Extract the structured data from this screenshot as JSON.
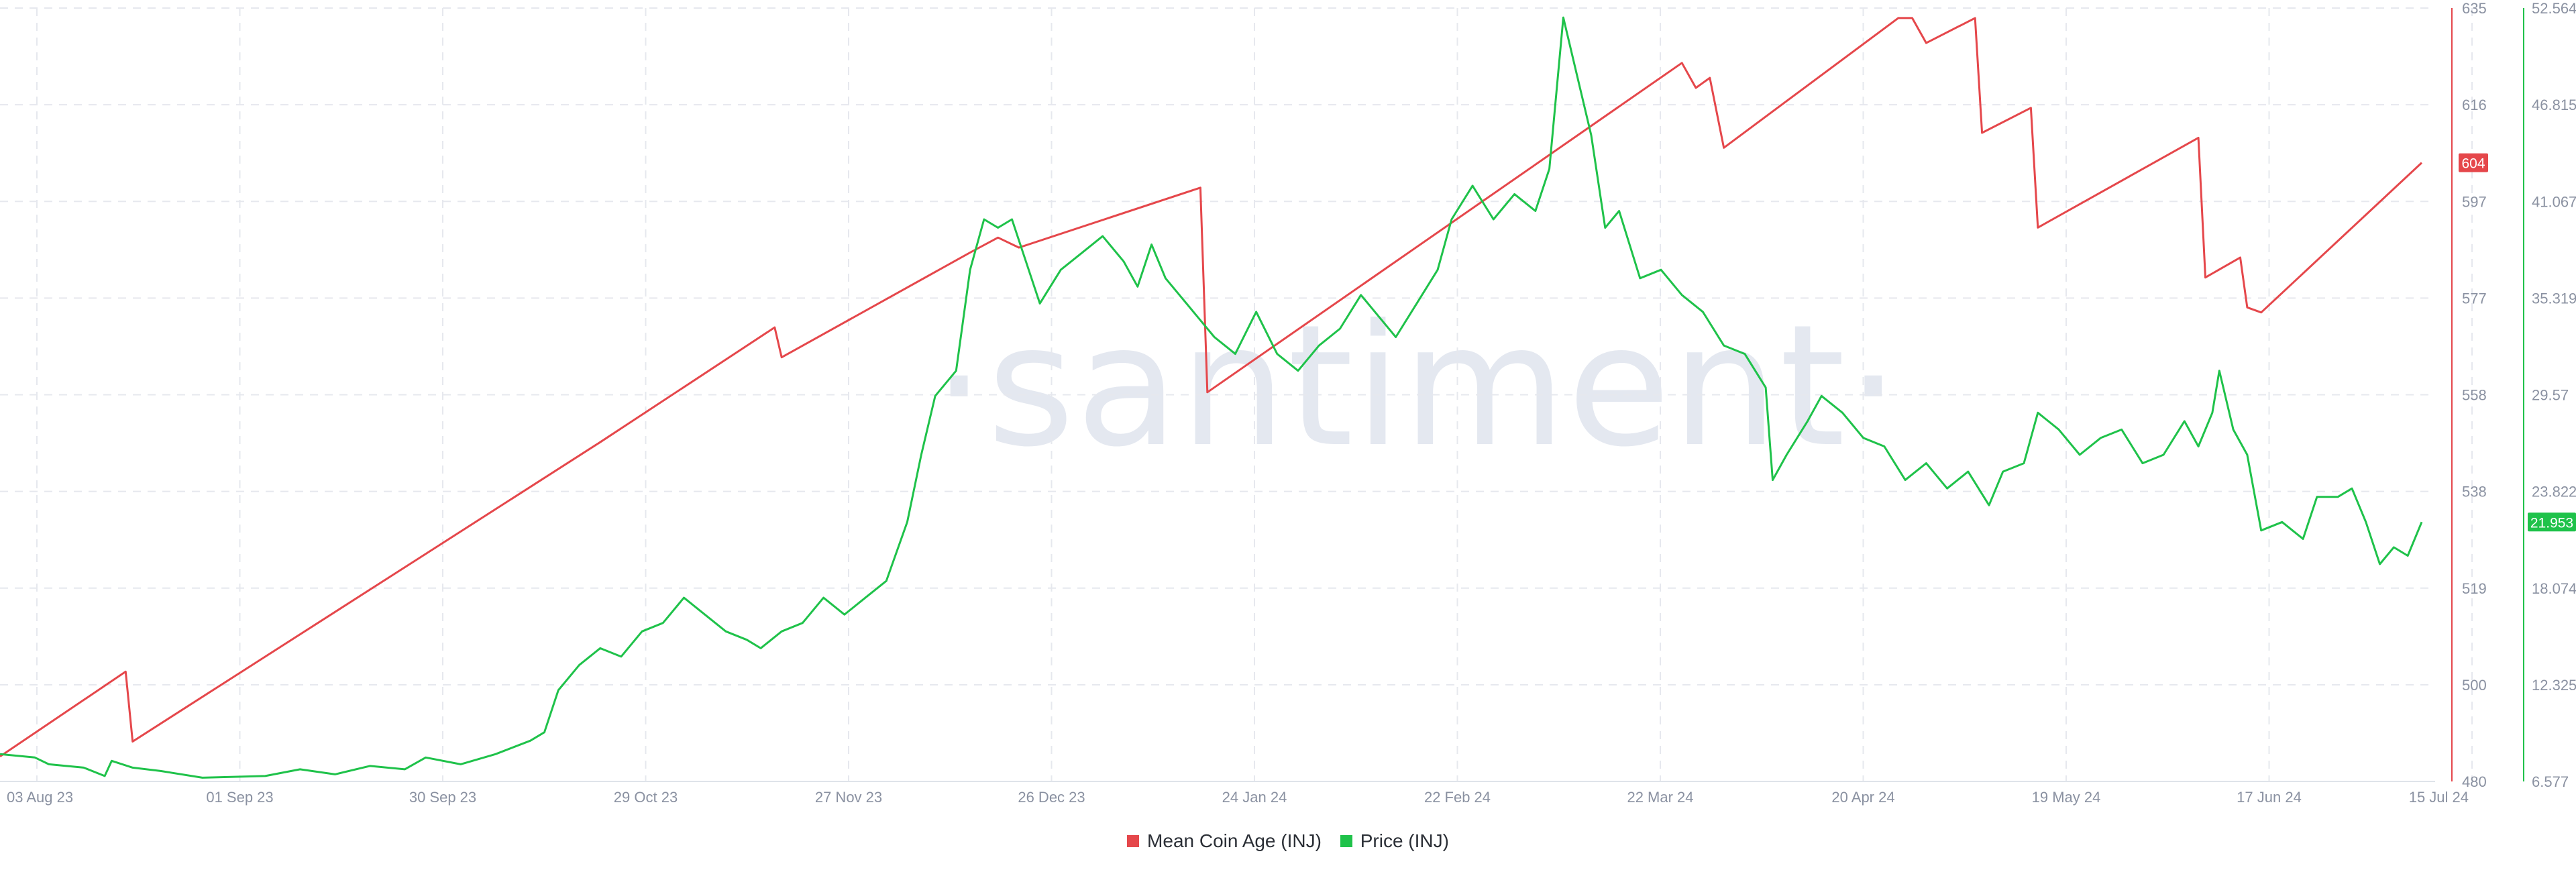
{
  "watermark": "·santiment·",
  "colors": {
    "coin_age": "#e5474b",
    "price": "#1fc24a",
    "grid": "#e6e8ee",
    "axis_text": "#8a91a1"
  },
  "current_labels": {
    "coin_age": "604",
    "price": "21.953"
  },
  "legend": {
    "coin_age": "Mean Coin Age (INJ)",
    "price": "Price (INJ)"
  },
  "chart_data": {
    "type": "line",
    "title": "",
    "x_ticks": [
      "03 Aug 23",
      "01 Sep 23",
      "30 Sep 23",
      "29 Oct 23",
      "27 Nov 23",
      "26 Dec 23",
      "24 Jan 24",
      "22 Feb 24",
      "22 Mar 24",
      "20 Apr 24",
      "19 May 24",
      "17 Jun 24",
      "15 Jul 24"
    ],
    "x_range": [
      "2023-08-03",
      "2024-07-15"
    ],
    "y_left": {
      "label": "Mean Coin Age (INJ)",
      "ticks": [
        "635",
        "616",
        "597",
        "577",
        "558",
        "538",
        "519",
        "500",
        "480"
      ],
      "range": [
        480,
        635
      ]
    },
    "y_right": {
      "label": "Price (INJ)",
      "ticks": [
        "52.564",
        "46.815",
        "41.067",
        "35.319",
        "29.57",
        "23.822",
        "18.074",
        "12.325",
        "6.577"
      ],
      "range": [
        6.577,
        52.564
      ]
    },
    "series": [
      {
        "name": "Mean Coin Age (INJ)",
        "axis": "left",
        "points": [
          [
            "2023-08-03",
            485
          ],
          [
            "2023-08-21",
            502
          ],
          [
            "2023-08-22",
            488
          ],
          [
            "2023-10-28",
            548
          ],
          [
            "2023-11-22",
            571
          ],
          [
            "2023-11-23",
            565
          ],
          [
            "2023-12-20",
            586
          ],
          [
            "2023-12-24",
            589
          ],
          [
            "2023-12-27",
            587
          ],
          [
            "2024-01-22",
            599
          ],
          [
            "2024-01-23",
            558
          ],
          [
            "2024-03-31",
            624
          ],
          [
            "2024-04-02",
            619
          ],
          [
            "2024-04-04",
            621
          ],
          [
            "2024-04-06",
            607
          ],
          [
            "2024-05-01",
            633
          ],
          [
            "2024-05-03",
            633
          ],
          [
            "2024-05-05",
            628
          ],
          [
            "2024-05-12",
            633
          ],
          [
            "2024-05-13",
            610
          ],
          [
            "2024-05-20",
            615
          ],
          [
            "2024-05-21",
            591
          ],
          [
            "2024-06-13",
            609
          ],
          [
            "2024-06-14",
            581
          ],
          [
            "2024-06-19",
            585
          ],
          [
            "2024-06-20",
            575
          ],
          [
            "2024-06-22",
            574
          ],
          [
            "2024-07-15",
            604
          ]
        ]
      },
      {
        "name": "Price (INJ)",
        "axis": "right",
        "points": [
          [
            "2023-08-03",
            8.2
          ],
          [
            "2023-08-08",
            8.0
          ],
          [
            "2023-08-10",
            7.6
          ],
          [
            "2023-08-15",
            7.4
          ],
          [
            "2023-08-18",
            6.9
          ],
          [
            "2023-08-19",
            7.8
          ],
          [
            "2023-08-22",
            7.4
          ],
          [
            "2023-08-26",
            7.2
          ],
          [
            "2023-09-01",
            6.8
          ],
          [
            "2023-09-10",
            6.9
          ],
          [
            "2023-09-15",
            7.3
          ],
          [
            "2023-09-20",
            7.0
          ],
          [
            "2023-09-25",
            7.5
          ],
          [
            "2023-09-30",
            7.3
          ],
          [
            "2023-10-03",
            8.0
          ],
          [
            "2023-10-08",
            7.6
          ],
          [
            "2023-10-13",
            8.2
          ],
          [
            "2023-10-18",
            9.0
          ],
          [
            "2023-10-20",
            9.5
          ],
          [
            "2023-10-22",
            12.0
          ],
          [
            "2023-10-25",
            13.5
          ],
          [
            "2023-10-28",
            14.5
          ],
          [
            "2023-10-31",
            14.0
          ],
          [
            "2023-11-03",
            15.5
          ],
          [
            "2023-11-06",
            16.0
          ],
          [
            "2023-11-09",
            17.5
          ],
          [
            "2023-11-12",
            16.5
          ],
          [
            "2023-11-15",
            15.5
          ],
          [
            "2023-11-18",
            15.0
          ],
          [
            "2023-11-20",
            14.5
          ],
          [
            "2023-11-23",
            15.5
          ],
          [
            "2023-11-26",
            16.0
          ],
          [
            "2023-11-29",
            17.5
          ],
          [
            "2023-12-02",
            16.5
          ],
          [
            "2023-12-05",
            17.5
          ],
          [
            "2023-12-08",
            18.5
          ],
          [
            "2023-12-11",
            22.0
          ],
          [
            "2023-12-13",
            26.0
          ],
          [
            "2023-12-15",
            29.5
          ],
          [
            "2023-12-18",
            31.0
          ],
          [
            "2023-12-20",
            37.0
          ],
          [
            "2023-12-22",
            40.0
          ],
          [
            "2023-12-24",
            39.5
          ],
          [
            "2023-12-26",
            40.0
          ],
          [
            "2023-12-28",
            37.5
          ],
          [
            "2023-12-30",
            35.0
          ],
          [
            "2024-01-02",
            37.0
          ],
          [
            "2024-01-05",
            38.0
          ],
          [
            "2024-01-08",
            39.0
          ],
          [
            "2024-01-11",
            37.5
          ],
          [
            "2024-01-13",
            36.0
          ],
          [
            "2024-01-15",
            38.5
          ],
          [
            "2024-01-17",
            36.5
          ],
          [
            "2024-01-19",
            35.5
          ],
          [
            "2024-01-22",
            34.0
          ],
          [
            "2024-01-24",
            33.0
          ],
          [
            "2024-01-27",
            32.0
          ],
          [
            "2024-01-30",
            34.5
          ],
          [
            "2024-02-02",
            32.0
          ],
          [
            "2024-02-05",
            31.0
          ],
          [
            "2024-02-08",
            32.5
          ],
          [
            "2024-02-11",
            33.5
          ],
          [
            "2024-02-14",
            35.5
          ],
          [
            "2024-02-17",
            34.0
          ],
          [
            "2024-02-19",
            33.0
          ],
          [
            "2024-02-22",
            35.0
          ],
          [
            "2024-02-25",
            37.0
          ],
          [
            "2024-02-27",
            40.0
          ],
          [
            "2024-03-01",
            42.0
          ],
          [
            "2024-03-04",
            40.0
          ],
          [
            "2024-03-07",
            41.5
          ],
          [
            "2024-03-10",
            40.5
          ],
          [
            "2024-03-12",
            43.0
          ],
          [
            "2024-03-14",
            52.0
          ],
          [
            "2024-03-16",
            48.5
          ],
          [
            "2024-03-18",
            45.0
          ],
          [
            "2024-03-20",
            39.5
          ],
          [
            "2024-03-22",
            40.5
          ],
          [
            "2024-03-25",
            36.5
          ],
          [
            "2024-03-28",
            37.0
          ],
          [
            "2024-03-31",
            35.5
          ],
          [
            "2024-04-03",
            34.5
          ],
          [
            "2024-04-06",
            32.5
          ],
          [
            "2024-04-09",
            32.0
          ],
          [
            "2024-04-12",
            30.0
          ],
          [
            "2024-04-13",
            24.5
          ],
          [
            "2024-04-15",
            26.0
          ],
          [
            "2024-04-18",
            28.0
          ],
          [
            "2024-04-20",
            29.5
          ],
          [
            "2024-04-23",
            28.5
          ],
          [
            "2024-04-26",
            27.0
          ],
          [
            "2024-04-29",
            26.5
          ],
          [
            "2024-05-02",
            24.5
          ],
          [
            "2024-05-05",
            25.5
          ],
          [
            "2024-05-08",
            24.0
          ],
          [
            "2024-05-11",
            25.0
          ],
          [
            "2024-05-14",
            23.0
          ],
          [
            "2024-05-16",
            25.0
          ],
          [
            "2024-05-19",
            25.5
          ],
          [
            "2024-05-21",
            28.5
          ],
          [
            "2024-05-24",
            27.5
          ],
          [
            "2024-05-27",
            26.0
          ],
          [
            "2024-05-30",
            27.0
          ],
          [
            "2024-06-02",
            27.5
          ],
          [
            "2024-06-05",
            25.5
          ],
          [
            "2024-06-08",
            26.0
          ],
          [
            "2024-06-11",
            28.0
          ],
          [
            "2024-06-13",
            26.5
          ],
          [
            "2024-06-15",
            28.5
          ],
          [
            "2024-06-16",
            31.0
          ],
          [
            "2024-06-18",
            27.5
          ],
          [
            "2024-06-20",
            26.0
          ],
          [
            "2024-06-22",
            21.5
          ],
          [
            "2024-06-25",
            22.0
          ],
          [
            "2024-06-28",
            21.0
          ],
          [
            "2024-06-30",
            23.5
          ],
          [
            "2024-07-03",
            23.5
          ],
          [
            "2024-07-05",
            24.0
          ],
          [
            "2024-07-07",
            22.0
          ],
          [
            "2024-07-09",
            19.5
          ],
          [
            "2024-07-11",
            20.5
          ],
          [
            "2024-07-13",
            20.0
          ],
          [
            "2024-07-15",
            22.0
          ]
        ]
      }
    ],
    "legend_position": "bottom-center",
    "grid": true
  }
}
